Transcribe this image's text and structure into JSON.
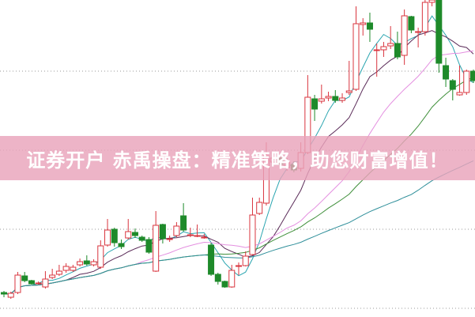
{
  "banner": {
    "text": "证券开户 赤禹操盘：精准策略，助您财富增值！"
  },
  "chart_data": {
    "type": "candlestick",
    "title": "",
    "xlabel": "",
    "ylabel": "",
    "ylim": [
      0,
      100
    ],
    "grid": "horizontal dotted",
    "colors": {
      "up": "#d9343e",
      "down": "#1e8a2a",
      "ma": [
        "#2aa5b0",
        "#5a2b58",
        "#e48fe0",
        "#3f8f3a",
        "#2f8f9a"
      ]
    },
    "moving_averages": [
      5,
      10,
      20,
      30,
      60
    ],
    "candles_ohlc": [
      [
        7.5,
        8,
        6,
        7
      ],
      [
        6,
        7.75,
        5.5,
        7.25
      ],
      [
        7.5,
        14,
        7,
        13
      ],
      [
        12.75,
        14,
        10.75,
        11.25
      ],
      [
        11.25,
        11.5,
        10,
        10.25
      ],
      [
        10.5,
        11,
        10,
        10.5
      ],
      [
        9.25,
        14.25,
        8.75,
        11.75
      ],
      [
        12.25,
        15,
        11.75,
        13
      ],
      [
        13.25,
        16.25,
        12.75,
        14.25
      ],
      [
        14.5,
        16.75,
        13.75,
        15.75
      ],
      [
        14.5,
        16.25,
        14,
        15.5
      ],
      [
        16.25,
        18.25,
        15.75,
        17.25
      ],
      [
        17.5,
        19.25,
        16,
        16.5
      ],
      [
        16.25,
        18,
        15.75,
        17.25
      ],
      [
        15.5,
        24,
        15,
        22.25
      ],
      [
        22.5,
        30.75,
        22,
        27.25
      ],
      [
        27.5,
        28,
        22,
        23.25
      ],
      [
        23,
        24.25,
        21.25,
        22
      ],
      [
        24.75,
        30.75,
        24.25,
        26.75
      ],
      [
        26.5,
        27.75,
        24.75,
        25.5
      ],
      [
        25,
        25.5,
        23.5,
        24
      ],
      [
        24.25,
        25,
        19.75,
        20.25
      ],
      [
        14.25,
        33.25,
        14,
        28.75
      ],
      [
        29,
        29.25,
        23,
        24.5
      ],
      [
        24.5,
        25.5,
        23.5,
        24.5
      ],
      [
        25.5,
        29.75,
        25,
        28.5
      ],
      [
        31.75,
        35.75,
        26.75,
        27.25
      ],
      [
        25.75,
        28,
        25,
        25.75
      ],
      [
        25.5,
        29,
        25,
        25.5
      ],
      [
        25,
        26,
        24.5,
        25
      ],
      [
        22.5,
        23.25,
        12.75,
        13.25
      ],
      [
        13.25,
        13.75,
        10,
        11
      ],
      [
        11,
        11.25,
        9,
        9.25
      ],
      [
        9.25,
        16.25,
        9,
        14.5
      ],
      [
        16,
        17,
        13,
        16
      ],
      [
        16,
        20.5,
        15.75,
        19
      ],
      [
        19.5,
        37.5,
        19.25,
        32
      ],
      [
        32.5,
        37.5,
        32,
        36
      ],
      [
        35.75,
        55,
        35,
        50.75
      ],
      [
        48.75,
        51.5,
        47.5,
        50
      ],
      [
        50,
        51,
        47,
        48
      ],
      [
        47,
        50,
        46,
        48.75
      ],
      [
        48,
        49,
        45.5,
        46.25
      ],
      [
        46.75,
        55,
        45.75,
        51.75
      ],
      [
        51.75,
        76.25,
        51.25,
        69.25
      ],
      [
        68.75,
        70,
        61.75,
        65.5
      ],
      [
        68,
        73.25,
        67.25,
        68.75
      ],
      [
        69,
        71,
        68,
        69.5
      ],
      [
        69.5,
        71.5,
        67.5,
        68.25
      ],
      [
        68.25,
        70.5,
        67.5,
        69
      ],
      [
        70.75,
        80.75,
        70,
        71.25
      ],
      [
        71.75,
        98,
        71.25,
        92.5
      ],
      [
        92.25,
        94.25,
        88.75,
        92.75
      ],
      [
        92.75,
        96,
        86.75,
        90.75
      ],
      [
        84.25,
        86.25,
        75.75,
        84.25
      ],
      [
        84.25,
        86.75,
        82,
        85.25
      ],
      [
        85.5,
        91.75,
        84.5,
        86.25
      ],
      [
        86.25,
        90,
        81.25,
        82
      ],
      [
        82.5,
        97,
        79.5,
        95
      ],
      [
        94.75,
        95,
        89.5,
        90.5
      ],
      [
        90,
        91.25,
        85,
        90
      ],
      [
        90,
        100,
        88.75,
        99.25
      ],
      [
        99.25,
        100,
        98,
        100
      ],
      [
        100,
        100,
        77,
        80
      ],
      [
        79.25,
        81.75,
        72.5,
        75
      ],
      [
        74.5,
        75,
        68.25,
        71.75
      ],
      [
        70,
        79.25,
        69.75,
        70.75
      ],
      [
        70.75,
        78,
        70,
        77.5
      ],
      [
        77.5,
        78,
        73.75,
        74.5
      ]
    ]
  }
}
